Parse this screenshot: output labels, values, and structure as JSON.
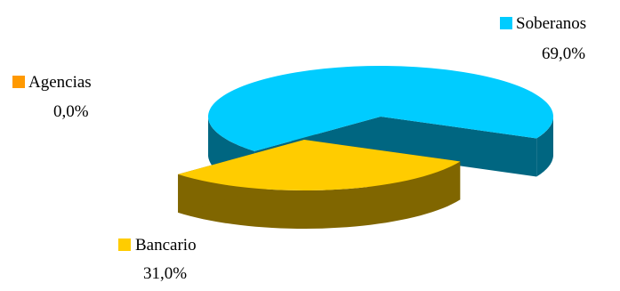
{
  "chart_data": {
    "type": "pie",
    "style": "3d-exploded",
    "title": "",
    "legend_placement": "labels beside slices",
    "slices": [
      {
        "label": "Soberanos",
        "value": 69.0,
        "value_label": "69,0%",
        "color": "#00CCFF",
        "side_color": "#006681"
      },
      {
        "label": "Bancario",
        "value": 31.0,
        "value_label": "31,0%",
        "color": "#FFCC00",
        "side_color": "#806600"
      },
      {
        "label": "Agencias",
        "value": 0.0,
        "value_label": "0,0%",
        "color": "#FF9900",
        "side_color": "#7F4C00"
      }
    ]
  }
}
